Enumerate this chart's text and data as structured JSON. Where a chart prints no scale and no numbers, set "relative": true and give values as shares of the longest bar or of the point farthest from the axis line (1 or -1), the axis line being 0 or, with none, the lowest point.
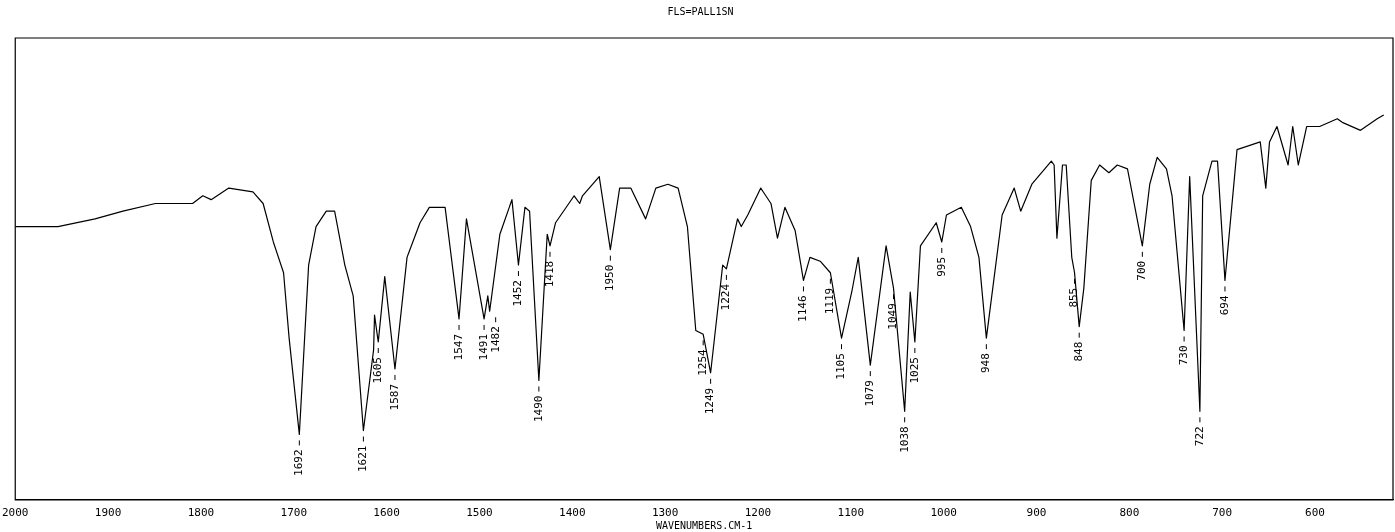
{
  "chart_data": {
    "type": "line",
    "title": "FLS=PALL1SN",
    "xlabel": "WAVENUMBERS.CM-1",
    "relative": true,
    "color": "#000000",
    "grid": false,
    "legend": false,
    "marker": "none",
    "line_style": "solid",
    "tick_labels": "x",
    "xlim": [
      2000,
      516
    ],
    "xticks": [
      2000,
      1900,
      1800,
      1700,
      1600,
      1500,
      1400,
      1300,
      1200,
      1100,
      1000,
      900,
      800,
      700,
      600
    ],
    "x": [
      2000,
      1978,
      1954,
      1914,
      1884,
      1849,
      1809,
      1798,
      1789,
      1770,
      1744,
      1733,
      1722,
      1711,
      1705,
      1694,
      1684,
      1676,
      1665,
      1656,
      1645,
      1636,
      1625,
      1614,
      1613,
      1609,
      1602,
      1591,
      1578,
      1564,
      1554,
      1537,
      1522,
      1514,
      1495,
      1491,
      1489,
      1478,
      1465,
      1458,
      1451,
      1446,
      1436,
      1427,
      1424,
      1418,
      1398,
      1392,
      1389,
      1371,
      1359,
      1349,
      1337,
      1321,
      1310,
      1297,
      1286,
      1276,
      1267,
      1259,
      1251,
      1238,
      1234,
      1222,
      1218,
      1211,
      1197,
      1186,
      1179,
      1171,
      1160,
      1151,
      1144,
      1133,
      1122,
      1110,
      1099,
      1092,
      1079,
      1062,
      1054,
      1042,
      1036,
      1031,
      1025,
      1008,
      1002,
      997,
      981,
      971,
      962,
      954,
      937,
      924,
      917,
      905,
      884,
      881,
      878,
      872,
      868,
      862,
      859,
      854,
      849,
      841,
      832,
      822,
      813,
      802,
      786,
      778,
      770,
      760,
      754,
      741,
      735,
      724,
      721,
      711,
      705,
      697,
      684,
      659,
      653,
      649,
      641,
      629,
      624,
      618,
      609,
      595,
      576,
      570,
      551,
      533,
      526
    ],
    "values": [
      0.71,
      0.71,
      0.71,
      0.73,
      0.75,
      0.77,
      0.77,
      0.79,
      0.78,
      0.81,
      0.8,
      0.77,
      0.67,
      0.59,
      0.42,
      0.17,
      0.61,
      0.71,
      0.75,
      0.75,
      0.61,
      0.53,
      0.18,
      0.39,
      0.48,
      0.41,
      0.58,
      0.34,
      0.63,
      0.72,
      0.76,
      0.76,
      0.47,
      0.73,
      0.47,
      0.53,
      0.49,
      0.69,
      0.78,
      0.61,
      0.76,
      0.75,
      0.31,
      0.69,
      0.66,
      0.72,
      0.79,
      0.77,
      0.79,
      0.84,
      0.65,
      0.81,
      0.81,
      0.73,
      0.81,
      0.82,
      0.81,
      0.71,
      0.44,
      0.43,
      0.33,
      0.61,
      0.6,
      0.73,
      0.71,
      0.74,
      0.81,
      0.77,
      0.68,
      0.76,
      0.7,
      0.57,
      0.63,
      0.62,
      0.59,
      0.42,
      0.54,
      0.63,
      0.35,
      0.66,
      0.55,
      0.23,
      0.54,
      0.41,
      0.66,
      0.72,
      0.67,
      0.74,
      0.76,
      0.71,
      0.63,
      0.42,
      0.74,
      0.81,
      0.75,
      0.82,
      0.88,
      0.87,
      0.68,
      0.87,
      0.87,
      0.63,
      0.59,
      0.45,
      0.55,
      0.83,
      0.87,
      0.85,
      0.87,
      0.86,
      0.66,
      0.82,
      0.89,
      0.86,
      0.79,
      0.44,
      0.84,
      0.23,
      0.79,
      0.88,
      0.88,
      0.57,
      0.91,
      0.93,
      0.81,
      0.93,
      0.97,
      0.87,
      0.97,
      0.87,
      0.97,
      0.97,
      0.99,
      0.98,
      0.96,
      0.99,
      1.0
    ],
    "annotations": [
      {
        "text": "1692",
        "x": 1694,
        "y": 0.17
      },
      {
        "text": "1621",
        "x": 1625,
        "y": 0.18
      },
      {
        "text": "1605",
        "x": 1609,
        "y": 0.41
      },
      {
        "text": "1587",
        "x": 1591,
        "y": 0.34
      },
      {
        "text": "1547",
        "x": 1522,
        "y": 0.47
      },
      {
        "text": "1491",
        "x": 1495,
        "y": 0.47
      },
      {
        "text": "1482",
        "x": 1489,
        "y": 0.49
      },
      {
        "text": "1452",
        "x": 1458,
        "y": 0.61
      },
      {
        "text": "1418",
        "x": 1424,
        "y": 0.66
      },
      {
        "text": "1490",
        "x": 1436,
        "y": 0.31
      },
      {
        "text": "1950",
        "x": 1359,
        "y": 0.65
      },
      {
        "text": "1254",
        "x": 1259,
        "y": 0.43
      },
      {
        "text": "1249",
        "x": 1251,
        "y": 0.33
      },
      {
        "text": "1224",
        "x": 1234,
        "y": 0.6
      },
      {
        "text": "1146",
        "x": 1151,
        "y": 0.57
      },
      {
        "text": "1119",
        "x": 1122,
        "y": 0.59
      },
      {
        "text": "1105",
        "x": 1110,
        "y": 0.42
      },
      {
        "text": "1079",
        "x": 1079,
        "y": 0.35
      },
      {
        "text": "1049",
        "x": 1054,
        "y": 0.55
      },
      {
        "text": "1038",
        "x": 1042,
        "y": 0.23
      },
      {
        "text": "1025",
        "x": 1031,
        "y": 0.41
      },
      {
        "text": "995",
        "x": 1002,
        "y": 0.67
      },
      {
        "text": "948",
        "x": 954,
        "y": 0.42
      },
      {
        "text": "855",
        "x": 859,
        "y": 0.59
      },
      {
        "text": "848",
        "x": 854,
        "y": 0.45
      },
      {
        "text": "700",
        "x": 786,
        "y": 0.66
      },
      {
        "text": "730",
        "x": 741,
        "y": 0.44
      },
      {
        "text": "722",
        "x": 724,
        "y": 0.23
      },
      {
        "text": "694",
        "x": 697,
        "y": 0.57
      }
    ]
  }
}
